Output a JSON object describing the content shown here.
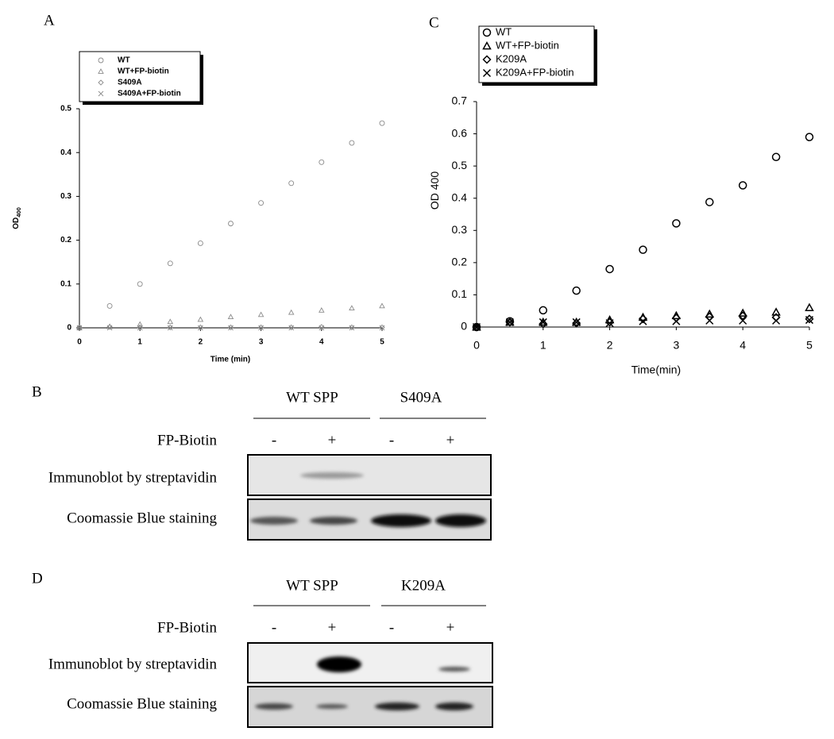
{
  "chart_data": [
    {
      "type": "scatter",
      "panel": "A",
      "xlabel": "Time (min)",
      "ylabel": "OD",
      "ylabel_sub": "400",
      "x": [
        0,
        0.5,
        1,
        1.5,
        2,
        2.5,
        3,
        3.5,
        4,
        4.5,
        5
      ],
      "xlim": [
        0,
        5
      ],
      "xticks": [
        0,
        1,
        2,
        3,
        4,
        5
      ],
      "ylim": [
        0,
        0.5
      ],
      "yticks": [
        0,
        0.1,
        0.2,
        0.3,
        0.4,
        0.5
      ],
      "series": [
        {
          "name": "WT",
          "color": "#8a8a8a",
          "marker": "circle",
          "values": [
            0,
            0.05,
            0.1,
            0.147,
            0.193,
            0.238,
            0.285,
            0.33,
            0.378,
            0.422,
            0.467
          ]
        },
        {
          "name": "WT+FP-biotin",
          "color": "#8a8a8a",
          "marker": "triangle",
          "values": [
            0,
            0.003,
            0.008,
            0.014,
            0.019,
            0.025,
            0.03,
            0.035,
            0.04,
            0.045,
            0.05
          ]
        },
        {
          "name": "S409A",
          "color": "#8a8a8a",
          "marker": "diamond",
          "values": [
            0,
            0.002,
            0.001,
            0.001,
            0.001,
            0.001,
            0.001,
            0.001,
            0.002,
            0.001,
            0.001
          ]
        },
        {
          "name": "S409A+FP-biotin",
          "color": "#8a8a8a",
          "marker": "cross",
          "values": [
            0,
            0,
            0,
            0,
            0,
            0,
            0,
            0,
            0,
            0,
            0
          ]
        }
      ]
    },
    {
      "type": "scatter",
      "panel": "C",
      "xlabel": "Time(min)",
      "ylabel": "OD 400",
      "x": [
        0,
        0.5,
        1,
        1.5,
        2,
        2.5,
        3,
        3.5,
        4,
        4.5,
        5
      ],
      "xlim": [
        0,
        5
      ],
      "xticks": [
        0,
        1,
        2,
        3,
        4,
        5
      ],
      "ylim": [
        0,
        0.7
      ],
      "yticks": [
        0,
        0.1,
        0.2,
        0.3,
        0.4,
        0.5,
        0.6,
        0.7
      ],
      "series": [
        {
          "name": "WT",
          "color": "#000000",
          "marker": "circle",
          "values": [
            0,
            0.018,
            0.052,
            0.113,
            0.18,
            0.24,
            0.322,
            0.388,
            0.44,
            0.528,
            0.59
          ]
        },
        {
          "name": "WT+FP-biotin",
          "color": "#000000",
          "marker": "triangle",
          "values": [
            0,
            0.015,
            0.015,
            0.015,
            0.022,
            0.03,
            0.035,
            0.04,
            0.043,
            0.046,
            0.06
          ]
        },
        {
          "name": "K209A",
          "color": "#000000",
          "marker": "diamond",
          "values": [
            0,
            0.015,
            0.01,
            0.012,
            0.015,
            0.025,
            0.028,
            0.032,
            0.035,
            0.03,
            0.025
          ]
        },
        {
          "name": "K209A+FP-biotin",
          "color": "#000000",
          "marker": "cross",
          "values": [
            0,
            0.015,
            0.015,
            0.015,
            0.012,
            0.018,
            0.018,
            0.02,
            0.02,
            0.02,
            0.022
          ]
        }
      ]
    }
  ],
  "blots": [
    {
      "panel": "B",
      "groups": [
        "WT SPP",
        "S409A"
      ],
      "treatment": "FP-Biotin",
      "signs": [
        "-",
        "+",
        "-",
        "+"
      ],
      "rows": [
        "Immunoblot by streptavidin",
        "Coomassie Blue staining"
      ]
    },
    {
      "panel": "D",
      "groups": [
        "WT SPP",
        "K209A"
      ],
      "treatment": "FP-Biotin",
      "signs": [
        "-",
        "+",
        "-",
        "+"
      ],
      "rows": [
        "Immunoblot by streptavidin",
        "Coomassie Blue staining"
      ]
    }
  ]
}
